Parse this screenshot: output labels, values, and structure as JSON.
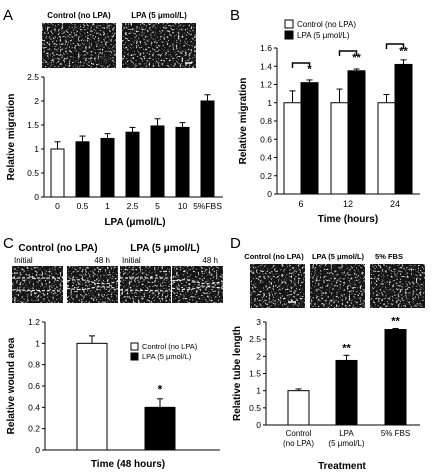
{
  "chart_data": [
    {
      "panel": "A",
      "type": "bar",
      "image_labels": [
        "Control (no LPA)",
        "LPA (5 μmol/L)"
      ],
      "categories": [
        "0",
        "0.5",
        "1",
        "2.5",
        "5",
        "10",
        "5%FBS"
      ],
      "values": [
        1.0,
        1.15,
        1.22,
        1.35,
        1.48,
        1.45,
        2.0
      ],
      "errors": [
        0.15,
        0.12,
        0.1,
        0.1,
        0.15,
        0.1,
        0.13
      ],
      "bar_colors": [
        "#ffffff",
        "#000000",
        "#000000",
        "#000000",
        "#000000",
        "#000000",
        "#000000"
      ],
      "xlabel": "LPA (μmol/L)",
      "ylabel": "Relative migration",
      "ylim": [
        0,
        2.5
      ],
      "yticks": [
        "0",
        "0.5",
        "1",
        "1.5",
        "2",
        "2.5"
      ]
    },
    {
      "panel": "B",
      "type": "bar",
      "categories": [
        "6",
        "12",
        "24"
      ],
      "series": [
        {
          "name": "Control (no LPA)",
          "color": "#ffffff",
          "values": [
            1.0,
            1.0,
            1.0
          ],
          "errors": [
            0.13,
            0.15,
            0.09
          ]
        },
        {
          "name": "LPA (5 μmol/L)",
          "color": "#000000",
          "values": [
            1.22,
            1.35,
            1.42
          ],
          "errors": [
            0.03,
            0.02,
            0.05
          ]
        }
      ],
      "annotations": [
        "*",
        "**",
        "**"
      ],
      "xlabel": "Time (hours)",
      "ylabel": "Relative migration",
      "ylim": [
        0,
        1.6
      ],
      "yticks": [
        "0",
        "0.2",
        "0.4",
        "0.6",
        "0.8",
        "1",
        "1.2",
        "1.4",
        "1.6"
      ],
      "legend": "top-left"
    },
    {
      "panel": "C",
      "type": "bar",
      "image_labels": [
        "Control (no LPA)",
        "LPA (5 μmol/L)"
      ],
      "image_sublabels": [
        "Initial",
        "48 h",
        "Initial",
        "48 h"
      ],
      "series": [
        {
          "name": "Control (no LPA)",
          "color": "#ffffff",
          "values": [
            1.0
          ],
          "errors": [
            0.07
          ]
        },
        {
          "name": "LPA (5 μmol/L)",
          "color": "#000000",
          "values": [
            0.4
          ],
          "errors": [
            0.08
          ]
        }
      ],
      "annotations": [
        "*"
      ],
      "xlabel": "Time (48 hours)",
      "ylabel": "Relative wound area",
      "ylim": [
        0,
        1.2
      ],
      "yticks": [
        "0",
        "0.2",
        "0.4",
        "0.6",
        "0.8",
        "1",
        "1.2"
      ],
      "legend": "top-right"
    },
    {
      "panel": "D",
      "type": "bar",
      "image_labels": [
        "Control (no LPA)",
        "LPA (5 μmol/L)",
        "5% FBS"
      ],
      "categories": [
        [
          "Control",
          "(no LPA)"
        ],
        [
          "LPA",
          "(5 μmol/L)"
        ],
        [
          "5% FBS"
        ]
      ],
      "values": [
        1.0,
        1.88,
        2.78
      ],
      "errors": [
        0.05,
        0.15,
        0.03
      ],
      "bar_colors": [
        "#ffffff",
        "#000000",
        "#000000"
      ],
      "annotations": [
        "",
        "**",
        "**"
      ],
      "xlabel": "Treatment",
      "ylabel": "Relative tube length",
      "ylim": [
        0,
        3
      ],
      "yticks": [
        "0",
        "0.5",
        "1",
        "1.5",
        "2",
        "2.5",
        "3"
      ]
    }
  ]
}
